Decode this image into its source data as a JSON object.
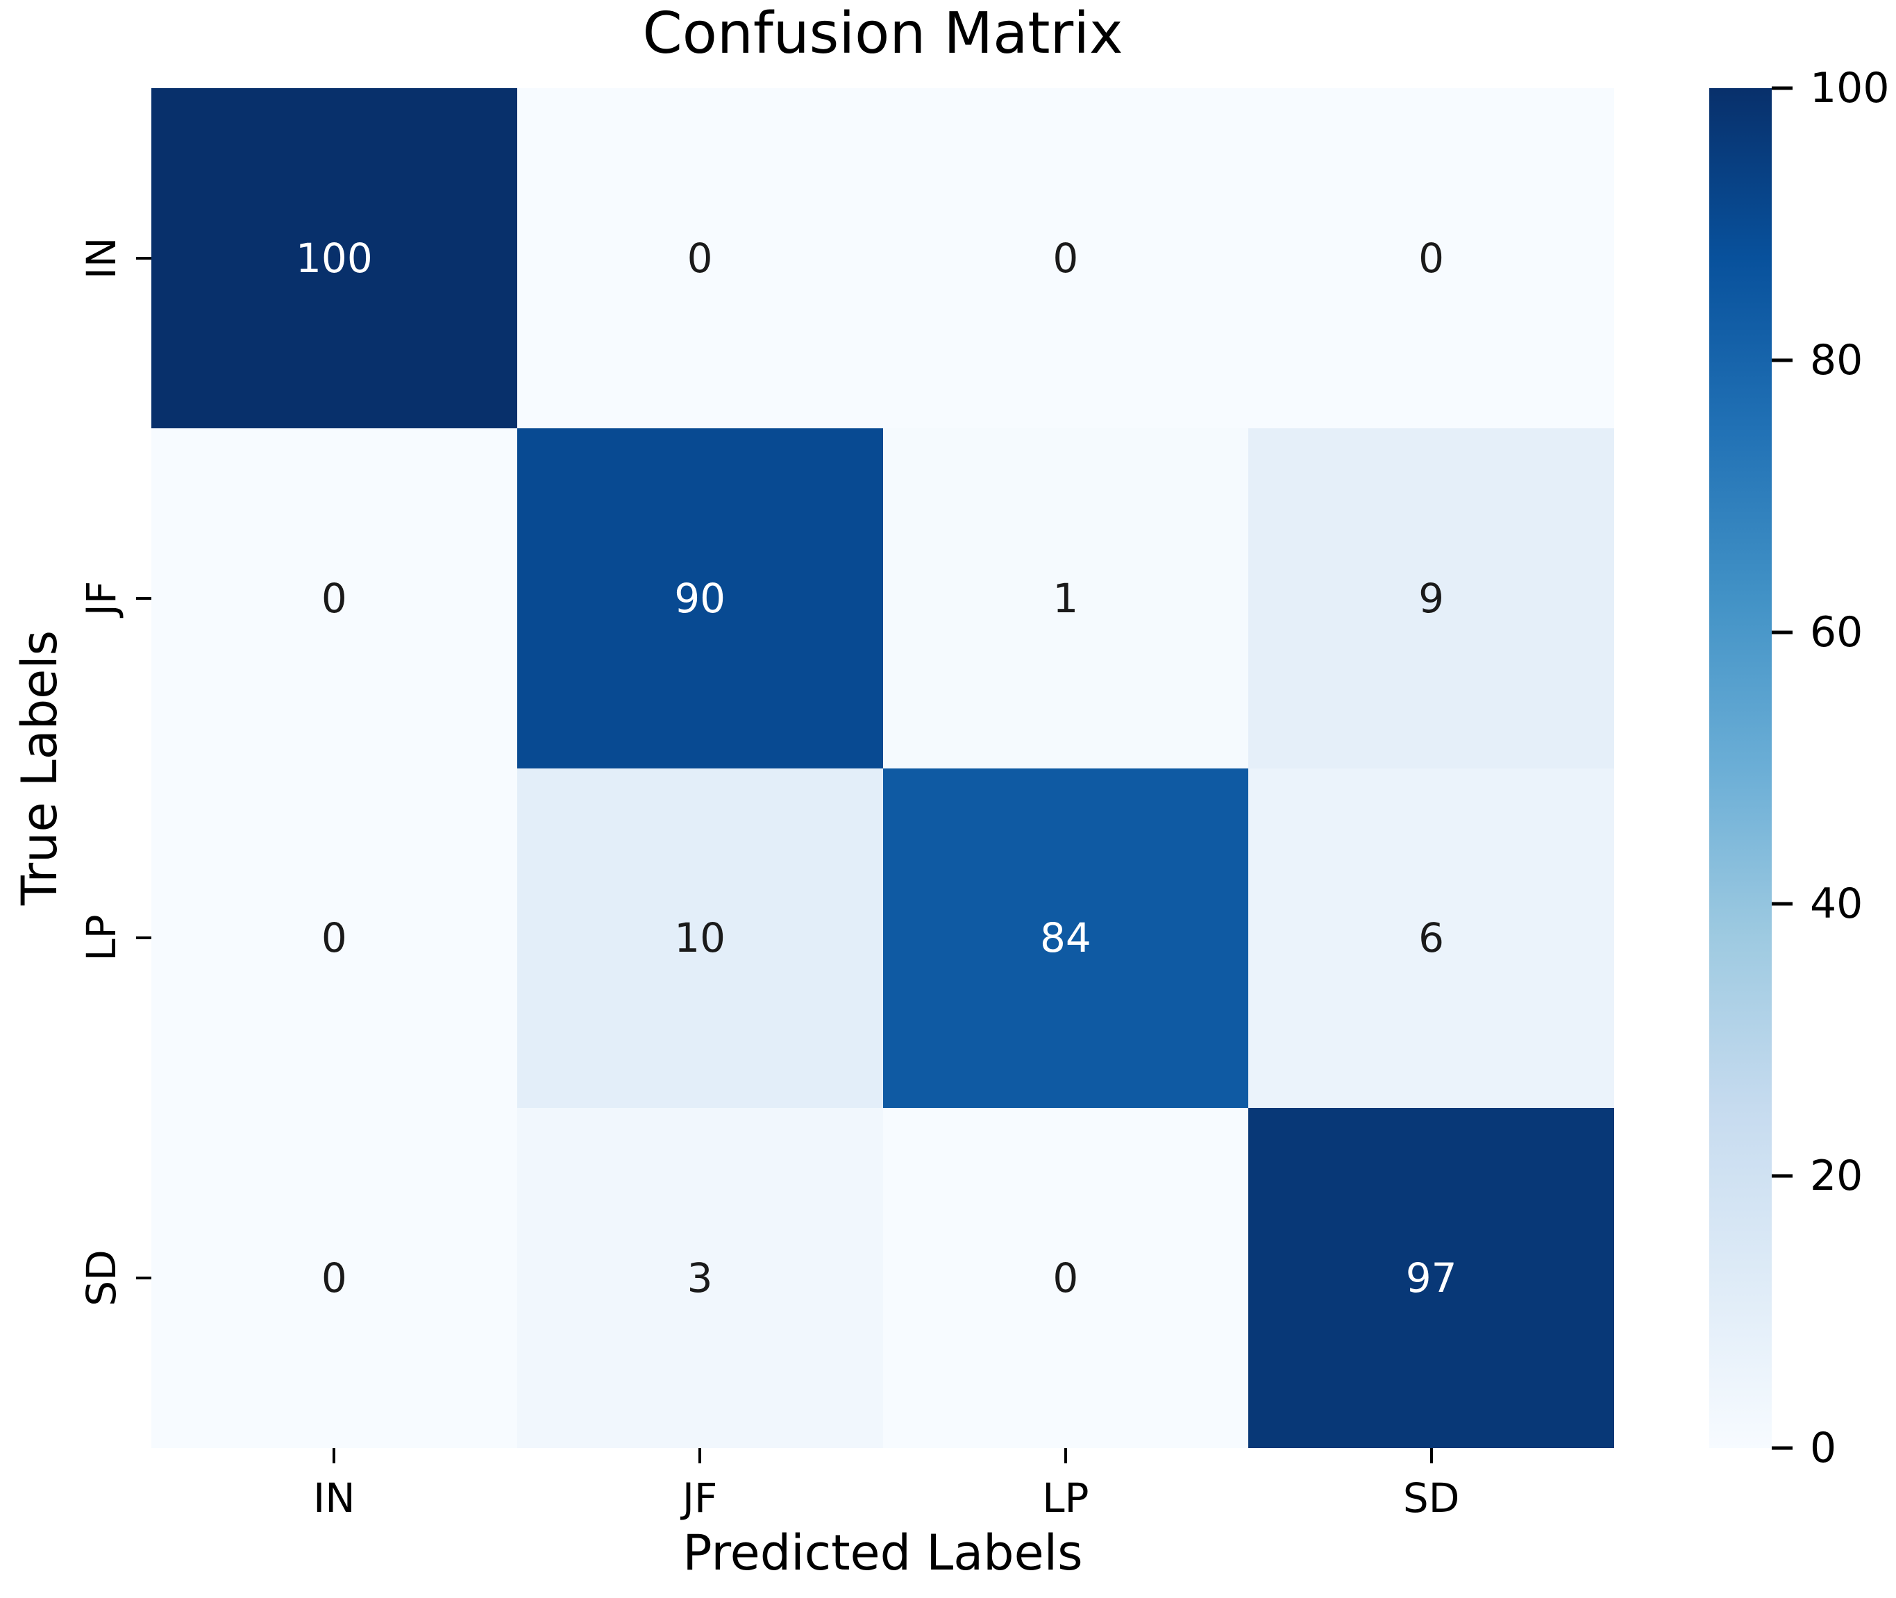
{
  "chart_data": {
    "type": "heatmap",
    "title": "Confusion Matrix",
    "xlabel": "Predicted Labels",
    "ylabel": "True Labels",
    "x_categories": [
      "IN",
      "JF",
      "LP",
      "SD"
    ],
    "y_categories": [
      "IN",
      "JF",
      "LP",
      "SD"
    ],
    "matrix": [
      [
        100,
        0,
        0,
        0
      ],
      [
        0,
        90,
        1,
        9
      ],
      [
        0,
        10,
        84,
        6
      ],
      [
        0,
        3,
        0,
        97
      ]
    ],
    "vmin": 0,
    "vmax": 100,
    "colormap": "Blues",
    "colorbar": {
      "position": "right",
      "ticks": [
        0,
        20,
        40,
        60,
        80,
        100
      ]
    },
    "grid": false,
    "colors": {
      "background": "#ffffff",
      "min_cell": "#f7fbff",
      "max_cell": "#08306b",
      "annotation_light": "#ffffff",
      "annotation_dark": "#1a1a1a",
      "axis_text": "#000000"
    }
  }
}
